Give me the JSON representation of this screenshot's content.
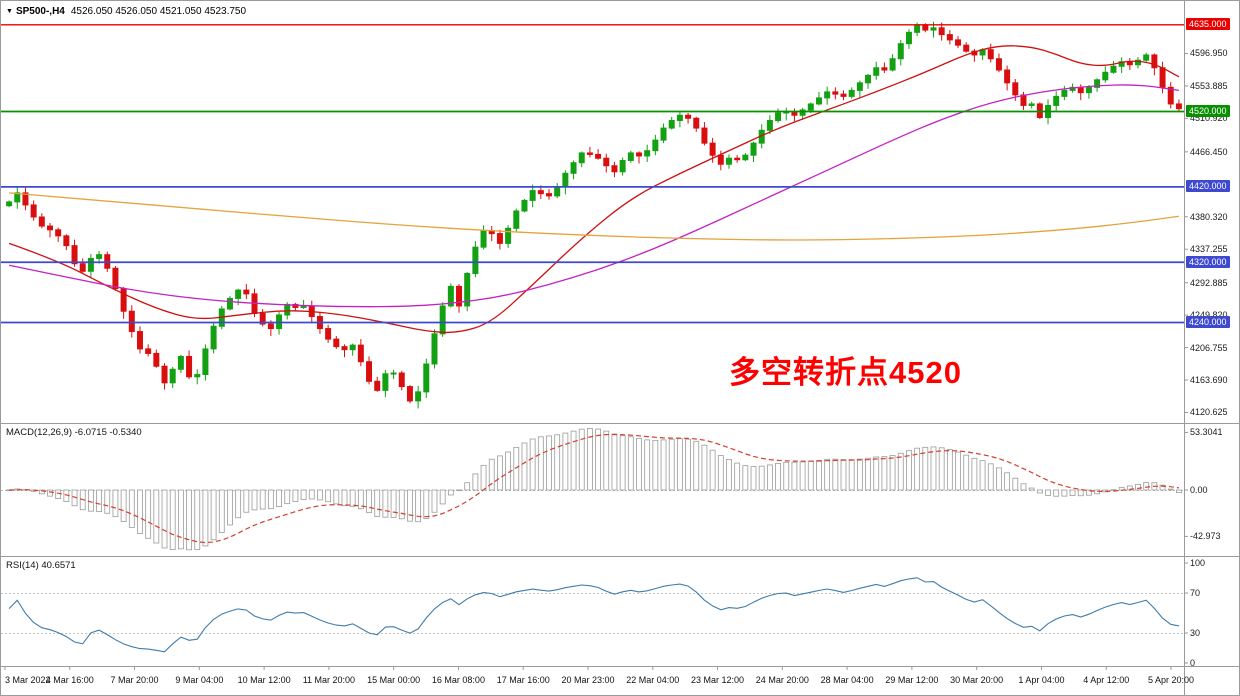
{
  "quote_bar": {
    "collapse_icon": "▼",
    "symbol": "SP500-,H4",
    "ohlc": "4526.050 4526.050 4521.050 4523.750"
  },
  "annotation": {
    "text": "多空转折点4520",
    "color": "#ff0000"
  },
  "panels": {
    "macd": {
      "label": "MACD(12,26,9) -6.0715 -0.5340",
      "axis_labels": [
        "53.3041",
        "0.00",
        "-42.973"
      ],
      "signal_color": "#d23f31",
      "hist_stroke": "#9b9b9b",
      "hist_fill": "#fdfdfd"
    },
    "rsi": {
      "label": "RSI(14) 40.6571",
      "axis_labels": [
        "100",
        "70",
        "30",
        "0"
      ],
      "levels": [
        70,
        30
      ],
      "line_color": "#3f7cac"
    }
  },
  "chart_data": {
    "type": "candlestick",
    "title": "SP500-,H4",
    "timeframe": "H4",
    "ylim": [
      4112,
      4648
    ],
    "bars": 144,
    "first_open": 4395,
    "up_color": "#13a113",
    "down_color": "#d90f0f",
    "closes": [
      4400,
      4412,
      4396,
      4380,
      4368,
      4363,
      4355,
      4342,
      4318,
      4308,
      4325,
      4330,
      4312,
      4285,
      4255,
      4228,
      4205,
      4199,
      4182,
      4160,
      4178,
      4195,
      4168,
      4171,
      4205,
      4235,
      4258,
      4272,
      4283,
      4278,
      4252,
      4238,
      4232,
      4250,
      4264,
      4260,
      4262,
      4248,
      4232,
      4218,
      4208,
      4204,
      4210,
      4188,
      4162,
      4150,
      4172,
      4173,
      4155,
      4136,
      4148,
      4185,
      4225,
      4262,
      4288,
      4262,
      4305,
      4340,
      4362,
      4358,
      4345,
      4365,
      4388,
      4402,
      4415,
      4411,
      4408,
      4420,
      4438,
      4452,
      4465,
      4463,
      4458,
      4448,
      4440,
      4455,
      4465,
      4461,
      4468,
      4482,
      4498,
      4508,
      4515,
      4511,
      4498,
      4478,
      4462,
      4450,
      4458,
      4456,
      4462,
      4478,
      4495,
      4508,
      4518,
      4520,
      4515,
      4522,
      4530,
      4538,
      4546,
      4543,
      4540,
      4548,
      4558,
      4568,
      4578,
      4575,
      4590,
      4610,
      4625,
      4635,
      4628,
      4631,
      4622,
      4615,
      4608,
      4600,
      4595,
      4602,
      4590,
      4575,
      4558,
      4542,
      4528,
      4530,
      4512,
      4528,
      4540,
      4548,
      4552,
      4545,
      4552,
      4562,
      4572,
      4580,
      4586,
      4582,
      4588,
      4595,
      4578,
      4552,
      4530,
      4523.75
    ],
    "price_ticks": [
      "4596.950",
      "4553.885",
      "4510.920",
      "4466.450",
      "4380.320",
      "4337.255",
      "4292.885",
      "4249.820",
      "4206.755",
      "4163.690",
      "4120.625"
    ],
    "hlines": [
      {
        "value": 4635,
        "label": "4635.000",
        "color": "#e80000"
      },
      {
        "value": 4520,
        "label": "4520.000",
        "color": "#089000"
      },
      {
        "value": 4420,
        "label": "4420.000",
        "color": "#3d49cf"
      },
      {
        "value": 4320,
        "label": "4320.000",
        "color": "#3d49cf"
      },
      {
        "value": 4240,
        "label": "4240.000",
        "color": "#3d49cf"
      }
    ],
    "moving_averages": [
      {
        "name": "ma-fast",
        "color": "#cc1111",
        "points": [
          [
            0,
            4345
          ],
          [
            6,
            4322
          ],
          [
            12,
            4288
          ],
          [
            18,
            4258
          ],
          [
            23,
            4243
          ],
          [
            28,
            4250
          ],
          [
            34,
            4257
          ],
          [
            40,
            4252
          ],
          [
            46,
            4240
          ],
          [
            51,
            4228
          ],
          [
            55,
            4226
          ],
          [
            59,
            4240
          ],
          [
            64,
            4290
          ],
          [
            70,
            4352
          ],
          [
            76,
            4405
          ],
          [
            82,
            4438
          ],
          [
            88,
            4468
          ],
          [
            94,
            4498
          ],
          [
            100,
            4522
          ],
          [
            106,
            4546
          ],
          [
            112,
            4572
          ],
          [
            117,
            4596
          ],
          [
            121,
            4608
          ],
          [
            125,
            4606
          ],
          [
            128,
            4596
          ],
          [
            131,
            4583
          ],
          [
            134,
            4580
          ],
          [
            137,
            4588
          ],
          [
            140,
            4584
          ],
          [
            143,
            4566
          ]
        ]
      },
      {
        "name": "ma-medium",
        "color": "#c322c3",
        "points": [
          [
            0,
            4316
          ],
          [
            8,
            4298
          ],
          [
            16,
            4281
          ],
          [
            24,
            4270
          ],
          [
            32,
            4264
          ],
          [
            40,
            4261
          ],
          [
            48,
            4261
          ],
          [
            54,
            4265
          ],
          [
            60,
            4274
          ],
          [
            66,
            4290
          ],
          [
            72,
            4310
          ],
          [
            78,
            4334
          ],
          [
            84,
            4362
          ],
          [
            90,
            4392
          ],
          [
            96,
            4422
          ],
          [
            102,
            4452
          ],
          [
            108,
            4482
          ],
          [
            114,
            4510
          ],
          [
            120,
            4532
          ],
          [
            126,
            4546
          ],
          [
            132,
            4554
          ],
          [
            138,
            4556
          ],
          [
            143,
            4548
          ]
        ]
      },
      {
        "name": "ma-slow",
        "color": "#e6a23c",
        "points": [
          [
            0,
            4412
          ],
          [
            12,
            4401
          ],
          [
            24,
            4390
          ],
          [
            36,
            4379
          ],
          [
            48,
            4369
          ],
          [
            60,
            4361
          ],
          [
            72,
            4355
          ],
          [
            84,
            4351
          ],
          [
            96,
            4349
          ],
          [
            108,
            4351
          ],
          [
            120,
            4356
          ],
          [
            130,
            4364
          ],
          [
            137,
            4372
          ],
          [
            143,
            4381
          ]
        ]
      }
    ],
    "macd": {
      "fast": 12,
      "slow": 26,
      "signal": 9,
      "last_macd": -6.0715,
      "last_signal": -0.534
    },
    "rsi": {
      "period": 14,
      "last": 40.6571
    },
    "x_labels": [
      "3 Mar 2022",
      "4 Mar 16:00",
      "7 Mar 20:00",
      "9 Mar 04:00",
      "10 Mar 12:00",
      "11 Mar 20:00",
      "15 Mar 00:00",
      "16 Mar 08:00",
      "17 Mar 16:00",
      "20 Mar 23:00",
      "22 Mar 04:00",
      "23 Mar 12:00",
      "24 Mar 20:00",
      "28 Mar 04:00",
      "29 Mar 12:00",
      "30 Mar 20:00",
      "1 Apr 04:00",
      "4 Apr 12:00",
      "5 Apr 20:00"
    ]
  }
}
